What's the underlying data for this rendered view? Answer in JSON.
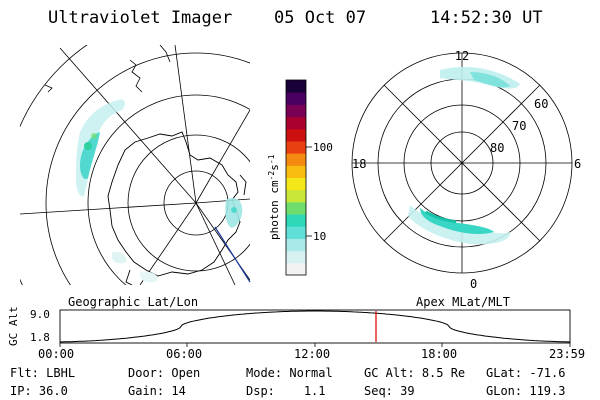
{
  "header": {
    "instrument": "Ultraviolet Imager",
    "date": "05 Oct 07",
    "time": "14:52:30 UT"
  },
  "left_panel": {
    "label": "Geographic Lat/Lon"
  },
  "right_panel": {
    "label": "Apex MLat/MLT",
    "mlt_labels": {
      "top": "12",
      "left": "18",
      "right": "6",
      "bottom": "0"
    },
    "lat_labels": [
      "60",
      "70",
      "80"
    ]
  },
  "colorbar": {
    "unit_label": "photon cm",
    "exp1": "-2",
    "mid": "s",
    "exp2": "-1",
    "ticks": [
      {
        "value": 100,
        "label": "100"
      },
      {
        "value": 10,
        "label": "10"
      }
    ],
    "colors": [
      "#f2f2f2",
      "#d5f1f1",
      "#a9e9e9",
      "#5fdfd8",
      "#2fd8b8",
      "#6fdd6c",
      "#c8e838",
      "#f4e81a",
      "#f9bd10",
      "#f58a10",
      "#e84010",
      "#cc1010",
      "#aa0030",
      "#7a0055",
      "#4a0060",
      "#1a0038"
    ]
  },
  "timeline": {
    "y_axis_label": "GC Alt",
    "y_ticks": [
      "9.0",
      "1.8"
    ],
    "x_ticks": [
      "00:00",
      "06:00",
      "12:00",
      "18:00",
      "23:59"
    ],
    "current_marker": "14:52"
  },
  "info": {
    "row1": [
      {
        "label": "Flt:",
        "value": "LBHL"
      },
      {
        "label": "Door:",
        "value": "Open"
      },
      {
        "label": "Mode:",
        "value": "Normal"
      },
      {
        "label": "GC Alt:",
        "value": "8.5 Re"
      },
      {
        "label": "GLat:",
        "value": "-71.6"
      }
    ],
    "row2": [
      {
        "label": "IP:",
        "value": "36.0"
      },
      {
        "label": "Gain:",
        "value": "14"
      },
      {
        "label": "Dsp:",
        "value": "1.1"
      },
      {
        "label": "Seq:",
        "value": "39"
      },
      {
        "label": "GLon:",
        "value": "119.3"
      }
    ]
  }
}
